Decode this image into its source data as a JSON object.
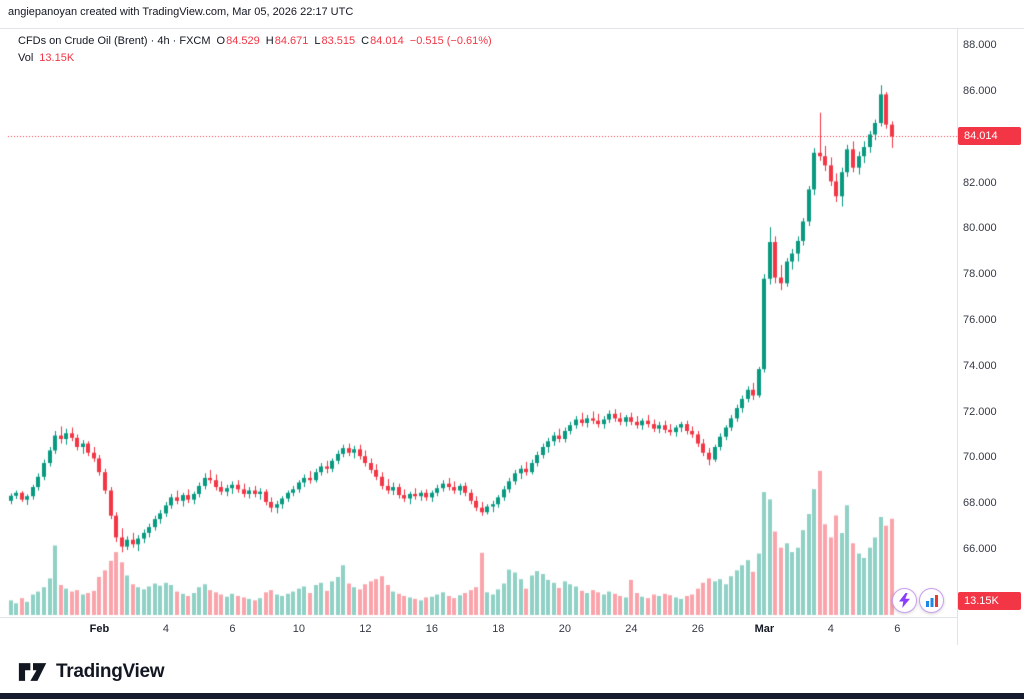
{
  "attribution": "angiepanoyan created with TradingView.com, Mar 05, 2026 22:17 UTC",
  "legend": {
    "title": "CFDs on Crude Oil (Brent) · 4h · FXCM",
    "o_label": "O",
    "o": "84.529",
    "h_label": "H",
    "h": "84.671",
    "l_label": "L",
    "l": "83.515",
    "c_label": "C",
    "c": "84.014",
    "change": "−0.515 (−0.61%)",
    "vol_label": "Vol",
    "vol_value": "13.15K"
  },
  "badges": {
    "price": "84.014",
    "volume": "13.15K"
  },
  "icons": {
    "reaction_1": "lightning-icon",
    "reaction_2": "chart-stats-icon",
    "logo": "tradingview-mark-icon"
  },
  "footer": {
    "brand": "TradingView"
  },
  "colors": {
    "up": "#089981",
    "down": "#f23645",
    "vol_up": "rgba(8,153,129,0.45)",
    "vol_down": "rgba(242,54,69,0.45)",
    "badge_bg": "#f23645",
    "axis_text": "#363a45",
    "bottom_bar": "#161c2d",
    "reaction_ring": "#c9a0f0"
  },
  "chart_data": {
    "type": "candlestick",
    "symbol": "CFDs on Crude Oil (Brent)",
    "interval": "4h",
    "exchange": "FXCM",
    "last_price": 84.014,
    "change": -0.515,
    "change_pct": -0.61,
    "last_volume_k": 13.15,
    "grid": false,
    "legend_position": "top-left",
    "ylim": [
      63.2,
      88.75
    ],
    "n_slots": 170,
    "vol_scale_max": 20.5,
    "y_ticks": [
      {
        "v": 88,
        "t": "88.000"
      },
      {
        "v": 86,
        "t": "86.000"
      },
      {
        "v": 84,
        "t": "84.000"
      },
      {
        "v": 82,
        "t": "82.000"
      },
      {
        "v": 80,
        "t": "80.000"
      },
      {
        "v": 78,
        "t": "78.000"
      },
      {
        "v": 76,
        "t": "76.000"
      },
      {
        "v": 74,
        "t": "74.000"
      },
      {
        "v": 72,
        "t": "72.000"
      },
      {
        "v": 70,
        "t": "70.000"
      },
      {
        "v": 68,
        "t": "68.000"
      },
      {
        "v": 66,
        "t": "66.000"
      }
    ],
    "x_ticks": [
      {
        "i": 16,
        "t": "Feb",
        "em": true
      },
      {
        "i": 28,
        "t": "4"
      },
      {
        "i": 40,
        "t": "6"
      },
      {
        "i": 52,
        "t": "10"
      },
      {
        "i": 64,
        "t": "12"
      },
      {
        "i": 76,
        "t": "16"
      },
      {
        "i": 88,
        "t": "18"
      },
      {
        "i": 100,
        "t": "20"
      },
      {
        "i": 112,
        "t": "24"
      },
      {
        "i": 124,
        "t": "26"
      },
      {
        "i": 136,
        "t": "Mar",
        "em": true
      },
      {
        "i": 148,
        "t": "4"
      },
      {
        "i": 160,
        "t": "6"
      }
    ],
    "candles": [
      [
        68.1,
        68.42,
        67.95,
        68.32,
        2.0
      ],
      [
        68.32,
        68.55,
        68.18,
        68.45,
        1.6
      ],
      [
        68.45,
        68.52,
        68.05,
        68.15,
        2.3
      ],
      [
        68.15,
        68.38,
        67.92,
        68.3,
        1.8
      ],
      [
        68.3,
        68.8,
        68.15,
        68.7,
        2.8
      ],
      [
        68.7,
        69.3,
        68.55,
        69.15,
        3.2
      ],
      [
        69.15,
        69.9,
        69.0,
        69.75,
        3.8
      ],
      [
        69.75,
        70.45,
        69.6,
        70.3,
        5.0
      ],
      [
        70.3,
        71.15,
        70.15,
        70.95,
        9.5
      ],
      [
        70.95,
        71.35,
        70.6,
        70.8,
        4.1
      ],
      [
        70.8,
        71.25,
        70.55,
        71.05,
        3.6
      ],
      [
        71.05,
        71.3,
        70.7,
        70.85,
        3.2
      ],
      [
        70.85,
        71.0,
        70.3,
        70.45,
        3.4
      ],
      [
        70.45,
        70.75,
        70.15,
        70.6,
        2.8
      ],
      [
        70.6,
        70.7,
        70.05,
        70.2,
        3.0
      ],
      [
        70.2,
        70.45,
        69.8,
        69.95,
        3.3
      ],
      [
        69.95,
        70.1,
        69.2,
        69.35,
        5.2
      ],
      [
        69.35,
        69.5,
        68.4,
        68.55,
        6.1
      ],
      [
        68.55,
        68.7,
        67.3,
        67.45,
        7.4
      ],
      [
        67.45,
        67.6,
        66.3,
        66.5,
        8.6
      ],
      [
        66.5,
        66.9,
        65.85,
        66.1,
        7.2
      ],
      [
        66.1,
        66.55,
        65.95,
        66.4,
        5.4
      ],
      [
        66.4,
        66.7,
        66.05,
        66.2,
        4.2
      ],
      [
        66.2,
        66.6,
        65.9,
        66.45,
        3.8
      ],
      [
        66.45,
        66.85,
        66.25,
        66.7,
        3.5
      ],
      [
        66.7,
        67.1,
        66.5,
        66.95,
        3.9
      ],
      [
        66.95,
        67.45,
        66.8,
        67.3,
        4.3
      ],
      [
        67.3,
        67.7,
        67.1,
        67.55,
        4.0
      ],
      [
        67.55,
        68.05,
        67.4,
        67.9,
        4.4
      ],
      [
        67.9,
        68.4,
        67.75,
        68.25,
        4.1
      ],
      [
        68.25,
        68.55,
        67.95,
        68.1,
        3.2
      ],
      [
        68.1,
        68.45,
        67.85,
        68.35,
        2.9
      ],
      [
        68.35,
        68.6,
        68.0,
        68.15,
        2.6
      ],
      [
        68.15,
        68.5,
        67.95,
        68.4,
        3.0
      ],
      [
        68.4,
        68.9,
        68.25,
        68.75,
        3.8
      ],
      [
        68.75,
        69.3,
        68.6,
        69.1,
        4.2
      ],
      [
        69.1,
        69.45,
        68.85,
        69.0,
        3.4
      ],
      [
        69.0,
        69.25,
        68.55,
        68.7,
        3.1
      ],
      [
        68.7,
        68.95,
        68.35,
        68.5,
        2.8
      ],
      [
        68.5,
        68.8,
        68.3,
        68.65,
        2.5
      ],
      [
        68.65,
        68.95,
        68.4,
        68.8,
        2.9
      ],
      [
        68.8,
        69.0,
        68.45,
        68.6,
        2.6
      ],
      [
        68.6,
        68.85,
        68.25,
        68.4,
        2.4
      ],
      [
        68.4,
        68.7,
        68.2,
        68.55,
        2.2
      ],
      [
        68.55,
        68.75,
        68.25,
        68.4,
        2.0
      ],
      [
        68.4,
        68.65,
        68.15,
        68.5,
        2.3
      ],
      [
        68.5,
        68.6,
        67.9,
        68.05,
        3.1
      ],
      [
        68.05,
        68.25,
        67.6,
        67.8,
        3.4
      ],
      [
        67.8,
        68.1,
        67.55,
        67.95,
        2.8
      ],
      [
        67.95,
        68.3,
        67.75,
        68.2,
        2.6
      ],
      [
        68.2,
        68.55,
        68.05,
        68.45,
        2.9
      ],
      [
        68.45,
        68.75,
        68.3,
        68.6,
        3.2
      ],
      [
        68.6,
        69.0,
        68.45,
        68.9,
        3.6
      ],
      [
        68.9,
        69.25,
        68.7,
        69.1,
        3.9
      ],
      [
        69.1,
        69.4,
        68.85,
        69.0,
        3.0
      ],
      [
        69.0,
        69.5,
        68.9,
        69.35,
        4.1
      ],
      [
        69.35,
        69.75,
        69.2,
        69.6,
        4.4
      ],
      [
        69.6,
        69.85,
        69.3,
        69.5,
        3.3
      ],
      [
        69.5,
        69.95,
        69.35,
        69.85,
        4.6
      ],
      [
        69.85,
        70.3,
        69.7,
        70.15,
        5.2
      ],
      [
        70.15,
        70.55,
        70.0,
        70.4,
        6.8
      ],
      [
        70.4,
        70.6,
        70.05,
        70.2,
        4.3
      ],
      [
        70.2,
        70.5,
        69.95,
        70.35,
        3.8
      ],
      [
        70.35,
        70.55,
        69.9,
        70.05,
        3.5
      ],
      [
        70.05,
        70.3,
        69.6,
        69.75,
        4.2
      ],
      [
        69.75,
        69.95,
        69.3,
        69.45,
        4.6
      ],
      [
        69.45,
        69.7,
        69.0,
        69.15,
        4.9
      ],
      [
        69.15,
        69.35,
        68.6,
        68.75,
        5.3
      ],
      [
        68.75,
        69.05,
        68.4,
        68.55,
        4.1
      ],
      [
        68.55,
        68.9,
        68.35,
        68.7,
        3.2
      ],
      [
        68.7,
        68.85,
        68.2,
        68.35,
        2.9
      ],
      [
        68.35,
        68.6,
        68.05,
        68.2,
        2.6
      ],
      [
        68.2,
        68.5,
        67.95,
        68.4,
        2.4
      ],
      [
        68.4,
        68.65,
        68.15,
        68.3,
        2.2
      ],
      [
        68.3,
        68.55,
        68.1,
        68.45,
        2.0
      ],
      [
        68.45,
        68.6,
        68.1,
        68.25,
        2.4
      ],
      [
        68.25,
        68.55,
        68.05,
        68.45,
        2.5
      ],
      [
        68.45,
        68.8,
        68.3,
        68.65,
        2.8
      ],
      [
        68.65,
        69.0,
        68.5,
        68.85,
        3.1
      ],
      [
        68.85,
        69.1,
        68.55,
        68.7,
        2.6
      ],
      [
        68.7,
        68.95,
        68.4,
        68.55,
        2.3
      ],
      [
        68.55,
        68.85,
        68.35,
        68.75,
        2.7
      ],
      [
        68.75,
        68.9,
        68.3,
        68.45,
        3.0
      ],
      [
        68.45,
        68.6,
        67.95,
        68.1,
        3.4
      ],
      [
        68.1,
        68.3,
        67.65,
        67.8,
        3.8
      ],
      [
        67.8,
        68.05,
        67.45,
        67.6,
        8.5
      ],
      [
        67.6,
        67.95,
        67.5,
        67.85,
        3.1
      ],
      [
        67.85,
        68.1,
        67.6,
        67.95,
        2.8
      ],
      [
        67.95,
        68.35,
        67.8,
        68.25,
        3.5
      ],
      [
        68.25,
        68.75,
        68.1,
        68.6,
        4.3
      ],
      [
        68.6,
        69.1,
        68.45,
        68.95,
        6.2
      ],
      [
        68.95,
        69.45,
        68.8,
        69.3,
        5.8
      ],
      [
        69.3,
        69.65,
        69.05,
        69.5,
        4.9
      ],
      [
        69.5,
        69.8,
        69.2,
        69.35,
        3.6
      ],
      [
        69.35,
        69.9,
        69.25,
        69.75,
        5.4
      ],
      [
        69.75,
        70.25,
        69.6,
        70.1,
        6.0
      ],
      [
        70.1,
        70.6,
        69.95,
        70.45,
        5.6
      ],
      [
        70.45,
        70.85,
        70.2,
        70.7,
        4.8
      ],
      [
        70.7,
        71.1,
        70.5,
        70.95,
        4.4
      ],
      [
        70.95,
        71.25,
        70.65,
        70.8,
        3.7
      ],
      [
        70.8,
        71.3,
        70.65,
        71.15,
        4.6
      ],
      [
        71.15,
        71.55,
        71.0,
        71.4,
        4.2
      ],
      [
        71.4,
        71.8,
        71.25,
        71.65,
        3.9
      ],
      [
        71.65,
        71.95,
        71.35,
        71.5,
        3.3
      ],
      [
        71.5,
        71.85,
        71.3,
        71.7,
        3.0
      ],
      [
        71.7,
        72.0,
        71.45,
        71.6,
        3.4
      ],
      [
        71.6,
        71.9,
        71.3,
        71.45,
        3.1
      ],
      [
        71.45,
        71.8,
        71.25,
        71.65,
        2.8
      ],
      [
        71.65,
        72.05,
        71.5,
        71.9,
        3.2
      ],
      [
        71.9,
        72.1,
        71.55,
        71.7,
        2.9
      ],
      [
        71.7,
        71.95,
        71.4,
        71.55,
        2.6
      ],
      [
        71.55,
        71.85,
        71.35,
        71.75,
        2.4
      ],
      [
        71.75,
        71.95,
        71.4,
        71.55,
        4.8
      ],
      [
        71.55,
        71.8,
        71.25,
        71.4,
        3.0
      ],
      [
        71.4,
        71.7,
        71.2,
        71.6,
        2.5
      ],
      [
        71.6,
        71.85,
        71.3,
        71.45,
        2.3
      ],
      [
        71.45,
        71.65,
        71.1,
        71.25,
        2.8
      ],
      [
        71.25,
        71.55,
        71.05,
        71.4,
        2.6
      ],
      [
        71.4,
        71.6,
        71.05,
        71.2,
        2.9
      ],
      [
        71.2,
        71.45,
        70.95,
        71.1,
        2.7
      ],
      [
        71.1,
        71.4,
        70.9,
        71.3,
        2.4
      ],
      [
        71.3,
        71.55,
        71.1,
        71.45,
        2.2
      ],
      [
        71.45,
        71.6,
        71.0,
        71.15,
        2.6
      ],
      [
        71.15,
        71.35,
        70.85,
        71.0,
        2.8
      ],
      [
        71.0,
        71.15,
        70.45,
        70.6,
        3.6
      ],
      [
        70.6,
        70.8,
        70.05,
        70.2,
        4.4
      ],
      [
        70.2,
        70.4,
        69.65,
        69.9,
        5.0
      ],
      [
        69.9,
        70.55,
        69.8,
        70.45,
        4.6
      ],
      [
        70.45,
        71.05,
        70.3,
        70.9,
        4.9
      ],
      [
        70.9,
        71.4,
        70.75,
        71.3,
        4.2
      ],
      [
        71.3,
        71.85,
        71.15,
        71.7,
        5.3
      ],
      [
        71.7,
        72.3,
        71.55,
        72.15,
        6.1
      ],
      [
        72.15,
        72.7,
        71.95,
        72.55,
        6.8
      ],
      [
        72.55,
        73.1,
        72.4,
        72.95,
        7.5
      ],
      [
        72.95,
        73.25,
        72.5,
        72.7,
        5.9
      ],
      [
        72.7,
        73.95,
        72.6,
        73.85,
        8.4
      ],
      [
        73.85,
        78.0,
        73.7,
        77.8,
        16.8
      ],
      [
        77.8,
        80.05,
        77.55,
        79.4,
        15.8
      ],
      [
        79.4,
        79.65,
        77.6,
        77.85,
        11.4
      ],
      [
        77.85,
        78.4,
        77.3,
        77.6,
        9.2
      ],
      [
        77.6,
        78.7,
        77.45,
        78.55,
        9.8
      ],
      [
        78.55,
        79.1,
        78.2,
        78.9,
        8.6
      ],
      [
        78.9,
        79.65,
        78.55,
        79.45,
        9.2
      ],
      [
        79.45,
        80.45,
        79.25,
        80.3,
        11.6
      ],
      [
        80.3,
        81.85,
        80.1,
        81.7,
        13.8
      ],
      [
        81.7,
        83.5,
        81.45,
        83.3,
        17.2
      ],
      [
        83.3,
        85.05,
        82.95,
        83.15,
        19.7
      ],
      [
        83.15,
        83.6,
        82.5,
        82.75,
        12.4
      ],
      [
        82.75,
        83.1,
        81.85,
        82.05,
        10.6
      ],
      [
        82.05,
        82.4,
        81.15,
        81.4,
        13.6
      ],
      [
        81.4,
        82.65,
        80.95,
        82.45,
        11.2
      ],
      [
        82.45,
        83.65,
        82.25,
        83.45,
        15.0
      ],
      [
        83.45,
        83.8,
        82.45,
        82.65,
        9.8
      ],
      [
        82.65,
        83.35,
        82.35,
        83.15,
        8.4
      ],
      [
        83.15,
        83.8,
        82.85,
        83.55,
        7.8
      ],
      [
        83.55,
        84.25,
        83.3,
        84.1,
        9.2
      ],
      [
        84.1,
        84.75,
        83.85,
        84.6,
        10.6
      ],
      [
        84.6,
        86.25,
        84.45,
        85.85,
        13.4
      ],
      [
        85.85,
        85.95,
        84.35,
        84.53,
        12.2
      ],
      [
        84.529,
        84.671,
        83.515,
        84.014,
        13.15
      ]
    ]
  }
}
